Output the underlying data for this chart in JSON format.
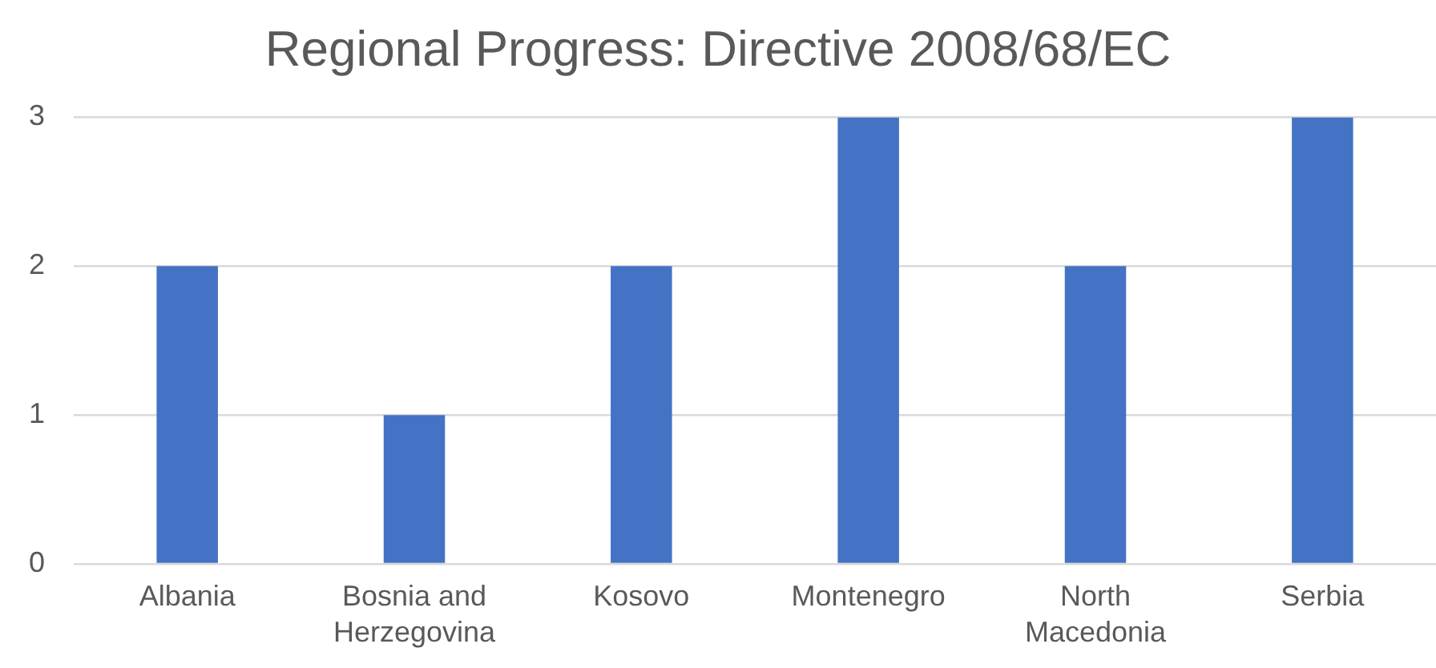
{
  "chart_data": {
    "type": "bar",
    "title": "Regional Progress: Directive 2008/68/EC",
    "categories": [
      "Albania",
      "Bosnia and Herzegovina",
      "Kosovo",
      "Montenegro",
      "North Macedonia",
      "Serbia"
    ],
    "values": [
      2,
      1,
      2,
      3,
      2,
      3
    ],
    "color": "#4472c4",
    "ylim": [
      0,
      3
    ],
    "yticks": [
      0,
      1,
      2,
      3
    ],
    "grid": "y"
  }
}
